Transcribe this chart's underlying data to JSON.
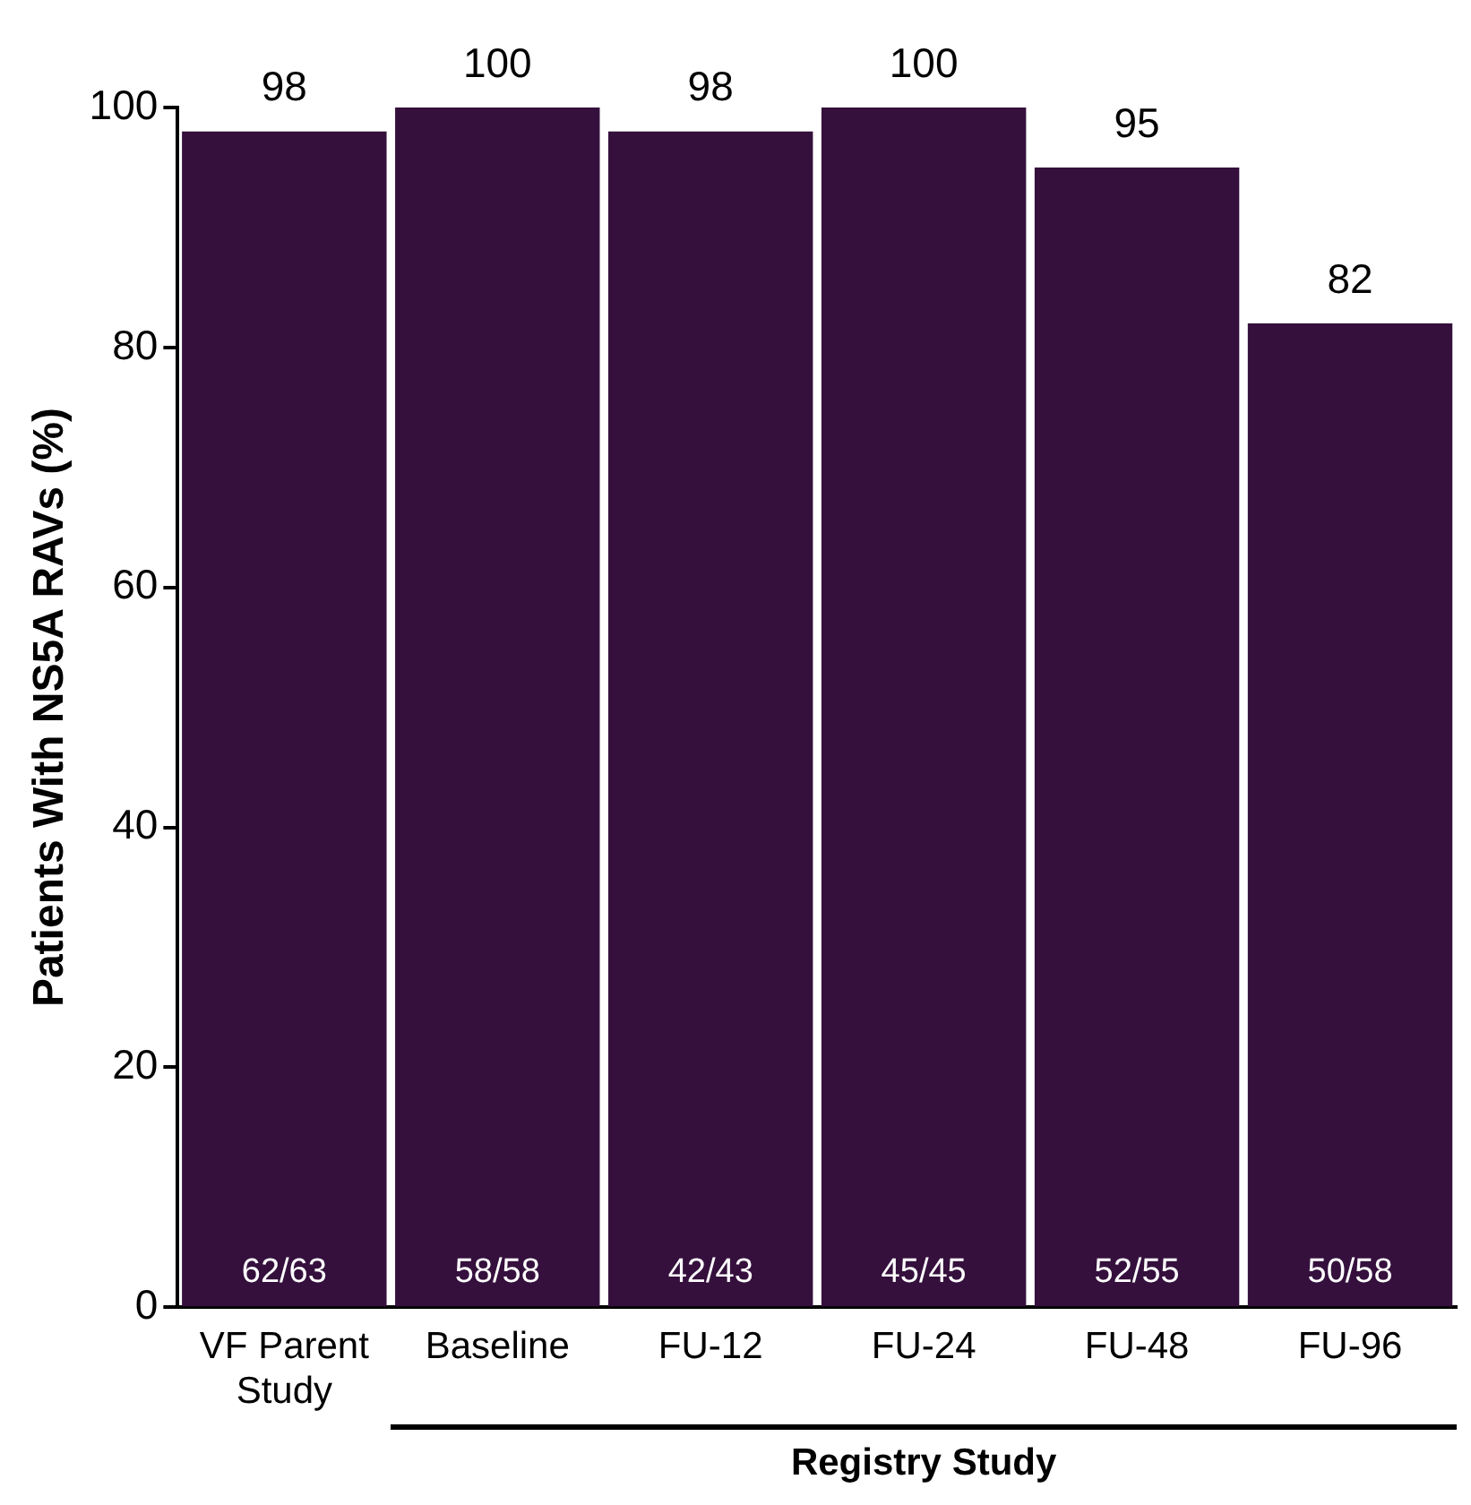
{
  "chart_data": {
    "type": "bar",
    "ylabel": "Patients With NS5A RAVs (%)",
    "categories": [
      "VF Parent Study",
      "Baseline",
      "FU-12",
      "FU-24",
      "FU-48",
      "FU-96"
    ],
    "values": [
      98,
      100,
      98,
      100,
      95,
      82
    ],
    "color": "#35103d",
    "ylim": [
      0,
      100
    ],
    "yticks": [
      0,
      20,
      40,
      60,
      80,
      100
    ],
    "grid": false,
    "legend": false,
    "data_labels": true,
    "annotations": [
      {
        "text": "62/63",
        "x": "VF Parent Study",
        "y": 0
      },
      {
        "text": "58/58",
        "x": "Baseline",
        "y": 0
      },
      {
        "text": "42/43",
        "x": "FU-12",
        "y": 0
      },
      {
        "text": "45/45",
        "x": "FU-24",
        "y": 0
      },
      {
        "text": "52/55",
        "x": "FU-48",
        "y": 0
      },
      {
        "text": "50/58",
        "x": "FU-96",
        "y": 0
      },
      "Registry Study"
    ]
  }
}
